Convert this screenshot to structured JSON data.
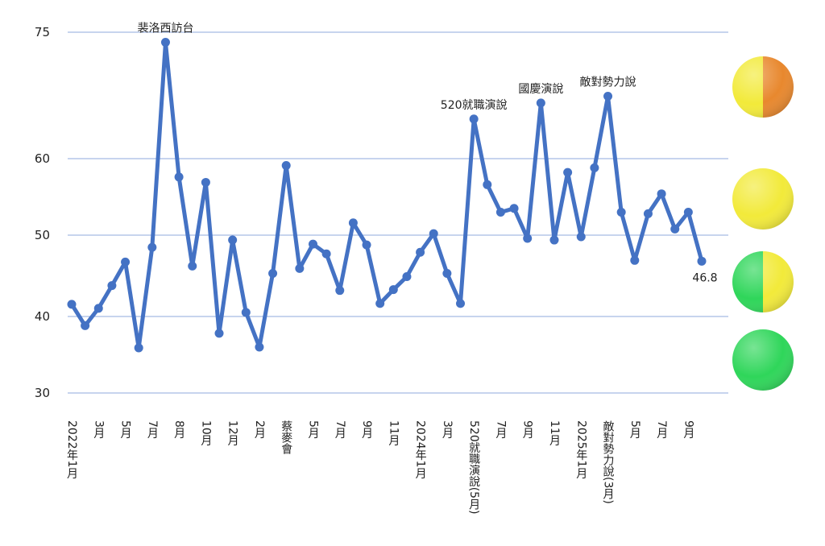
{
  "chart_data": {
    "type": "line",
    "title": "",
    "xlabel": "",
    "ylabel": "",
    "ylim": [
      30,
      75
    ],
    "yticks": [
      30,
      40,
      50,
      60,
      75
    ],
    "grid": true,
    "x_tick_labels": [
      "2022年1月",
      "3月",
      "5月",
      "7月",
      "8月",
      "10月",
      "12月",
      "2月",
      "蔡麥會",
      "5月",
      "7月",
      "9月",
      "11月",
      "2024年1月",
      "3月",
      "520就職演說(5月)",
      "7月",
      "9月",
      "11月",
      "2025年1月",
      "敵對勢力說(3月)",
      "5月",
      "7月",
      "9月"
    ],
    "series": [
      {
        "name": "series1",
        "color": "#4472c4",
        "values": [
          41.5,
          38.8,
          41,
          43.8,
          46.7,
          35.9,
          48.5,
          73.8,
          57.6,
          46.2,
          56.9,
          37.8,
          49.4,
          40.5,
          36,
          45.3,
          59.1,
          45.9,
          48.9,
          47.7,
          43.2,
          51.6,
          48.8,
          41.6,
          43.3,
          44.9,
          47.9,
          50.2,
          45.3,
          41.6,
          64.7,
          56.6,
          53,
          53.5,
          49.6,
          66.6,
          49.4,
          58.2,
          49.8,
          58.8,
          67.4,
          53,
          46.9,
          52.8,
          55.4,
          50.8,
          53,
          46.8
        ]
      }
    ],
    "annotations": [
      {
        "index": 7,
        "text": "裴洛西訪台"
      },
      {
        "index": 30,
        "text": "520就職演說"
      },
      {
        "index": 35,
        "text": "國慶演說"
      },
      {
        "index": 40,
        "text": "敵對勢力說"
      },
      {
        "index": 47,
        "text": "46.8"
      }
    ],
    "indicators": [
      {
        "name": "orange-yellow",
        "left": "#f2ea3a",
        "right": "#e8882e"
      },
      {
        "name": "yellow",
        "left": "#f2ea3a",
        "right": "#f2ea3a"
      },
      {
        "name": "green-yellow",
        "left": "#2fd65a",
        "right": "#f2ea3a"
      },
      {
        "name": "green",
        "left": "#2fd65a",
        "right": "#2fd65a"
      }
    ]
  }
}
